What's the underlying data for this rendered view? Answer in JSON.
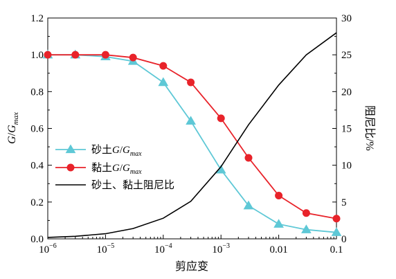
{
  "chart_data": {
    "type": "line",
    "x_axis": {
      "label": "剪应变",
      "scale": "log",
      "range": [
        1e-06,
        0.1
      ],
      "ticks": [
        1e-06,
        1e-05,
        0.0001,
        0.001,
        0.01,
        0.1
      ],
      "tick_labels": [
        {
          "base": "10",
          "exp": "−6"
        },
        {
          "base": "10",
          "exp": "−5"
        },
        {
          "base": "10",
          "exp": "−4"
        },
        {
          "base": "10",
          "exp": "−3"
        },
        {
          "text": "0.01"
        },
        {
          "text": "0.1"
        }
      ]
    },
    "y_axis_left": {
      "label_parts": [
        {
          "text": "G",
          "italic": true
        },
        {
          "text": "/",
          "italic": false
        },
        {
          "text": "G",
          "italic": true
        },
        {
          "text": "max",
          "italic": true,
          "sub": true
        }
      ],
      "range": [
        0,
        1.2
      ],
      "ticks": [
        0,
        0.2,
        0.4,
        0.6,
        0.8,
        1.0,
        1.2
      ],
      "tick_labels": [
        "0.0",
        "0.2",
        "0.4",
        "0.6",
        "0.8",
        "1.0",
        "1.2"
      ]
    },
    "y_axis_right": {
      "label": "阻尼比/%",
      "range": [
        0,
        30
      ],
      "ticks": [
        0,
        5,
        10,
        15,
        20,
        25,
        30
      ],
      "tick_labels": [
        "0",
        "5",
        "10",
        "15",
        "20",
        "25",
        "30"
      ]
    },
    "grid": false,
    "legend_position": "center-left",
    "series": [
      {
        "key": "sand",
        "axis": "left",
        "color": "#5ec8d6",
        "marker": "triangle",
        "legend_parts": [
          {
            "text": "砂土",
            "italic": false
          },
          {
            "text": "G",
            "italic": true
          },
          {
            "text": "/",
            "italic": false
          },
          {
            "text": "G",
            "italic": true
          },
          {
            "text": "max",
            "italic": true,
            "sub": true
          }
        ],
        "x": [
          1e-06,
          3e-06,
          1e-05,
          3e-05,
          0.0001,
          0.0003,
          0.001,
          0.003,
          0.01,
          0.03,
          0.1
        ],
        "y": [
          1.0,
          1.0,
          0.99,
          0.965,
          0.85,
          0.64,
          0.375,
          0.18,
          0.08,
          0.05,
          0.035
        ]
      },
      {
        "key": "clay",
        "axis": "left",
        "color": "#e8232a",
        "marker": "circle",
        "legend_parts": [
          {
            "text": "黏土",
            "italic": false
          },
          {
            "text": "G",
            "italic": true
          },
          {
            "text": "/",
            "italic": false
          },
          {
            "text": "G",
            "italic": true
          },
          {
            "text": "max",
            "italic": true,
            "sub": true
          }
        ],
        "x": [
          1e-06,
          3e-06,
          1e-05,
          3e-05,
          0.0001,
          0.0003,
          0.001,
          0.003,
          0.01,
          0.03,
          0.1
        ],
        "y": [
          1.0,
          1.0,
          1.0,
          0.985,
          0.94,
          0.85,
          0.655,
          0.44,
          0.235,
          0.14,
          0.11
        ]
      },
      {
        "key": "damping",
        "axis": "right",
        "color": "#000000",
        "marker": "none",
        "legend_parts": [
          {
            "text": "砂土、黏土阻尼比",
            "italic": false
          }
        ],
        "x": [
          1e-06,
          3e-06,
          1e-05,
          3e-05,
          0.0001,
          0.0003,
          0.001,
          0.003,
          0.01,
          0.03,
          0.1
        ],
        "y": [
          0.2,
          0.35,
          0.7,
          1.4,
          2.8,
          5.1,
          9.8,
          15.5,
          20.9,
          25.0,
          28.0
        ]
      }
    ]
  }
}
